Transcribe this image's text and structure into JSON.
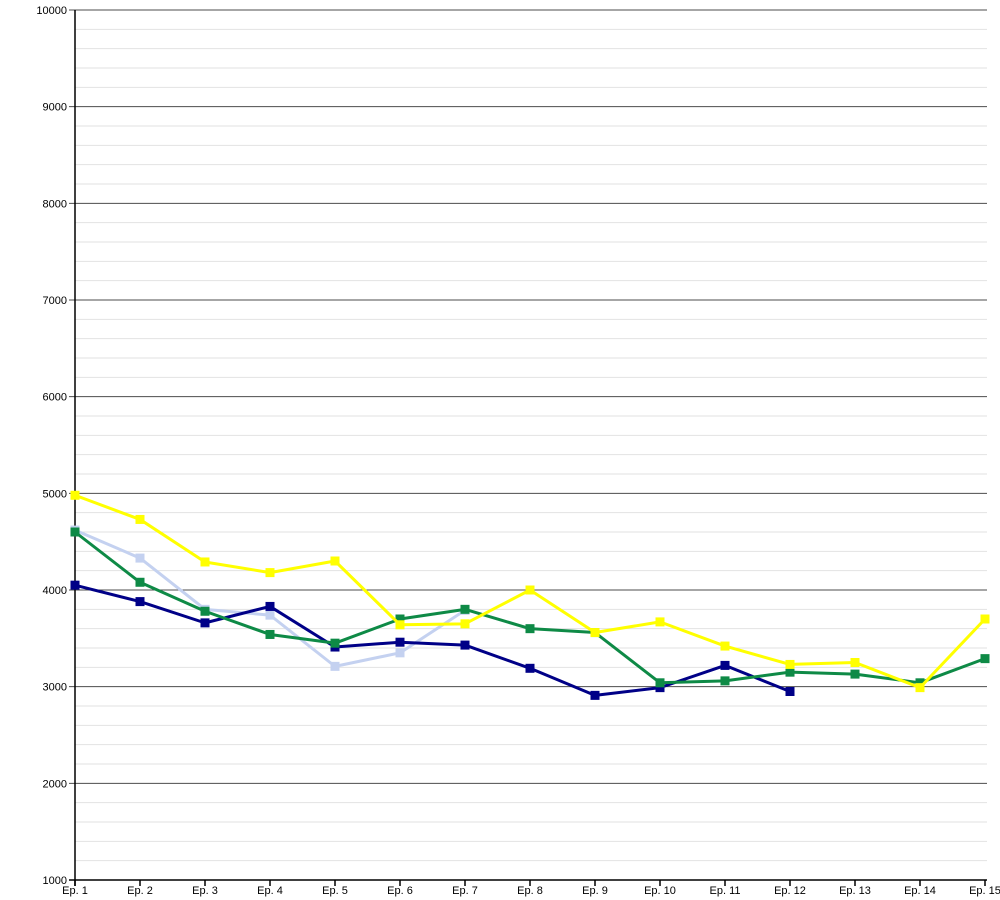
{
  "chart_data": {
    "type": "line",
    "title": "",
    "xlabel": "",
    "ylabel": "",
    "categories": [
      "Ep. 1",
      "Ep. 2",
      "Ep. 3",
      "Ep. 4",
      "Ep. 5",
      "Ep. 6",
      "Ep. 7",
      "Ep. 8",
      "Ep. 9",
      "Ep. 10",
      "Ep. 11",
      "Ep. 12",
      "Ep. 13",
      "Ep. 14",
      "Ep. 15"
    ],
    "series": [
      {
        "name": "light-blue",
        "color": "#C4D1F0",
        "values": [
          4620,
          4330,
          3800,
          3740,
          3210,
          3350,
          3790
        ]
      },
      {
        "name": "navy",
        "color": "#000087",
        "values": [
          4050,
          3880,
          3660,
          3830,
          3410,
          3460,
          3430,
          3190,
          2910,
          2990,
          3220,
          2950
        ]
      },
      {
        "name": "green",
        "color": "#0E8A46",
        "values": [
          4600,
          4080,
          3780,
          3540,
          3450,
          3700,
          3800,
          3600,
          3560,
          3040,
          3060,
          3150,
          3130,
          3040,
          3290
        ]
      },
      {
        "name": "yellow",
        "color": "#FFFF00",
        "values": [
          4980,
          4730,
          4290,
          4180,
          4300,
          3640,
          3650,
          4000,
          3560,
          3670,
          3420,
          3230,
          3250,
          2990,
          3700
        ]
      }
    ],
    "ylim": [
      1000,
      10000
    ],
    "y_major_step": 1000,
    "y_minor_step": 200,
    "y_tick_labels": [
      "10000",
      "9000",
      "8000",
      "7000",
      "6000",
      "5000",
      "4000",
      "3000",
      "2000",
      "1000"
    ],
    "grid": true,
    "legend": false,
    "colors": {
      "major_grid": "#4D4D4D",
      "minor_grid": "#E2E2E2",
      "axis": "#000000",
      "background": "#FFFFFF",
      "text": "#000000"
    }
  }
}
